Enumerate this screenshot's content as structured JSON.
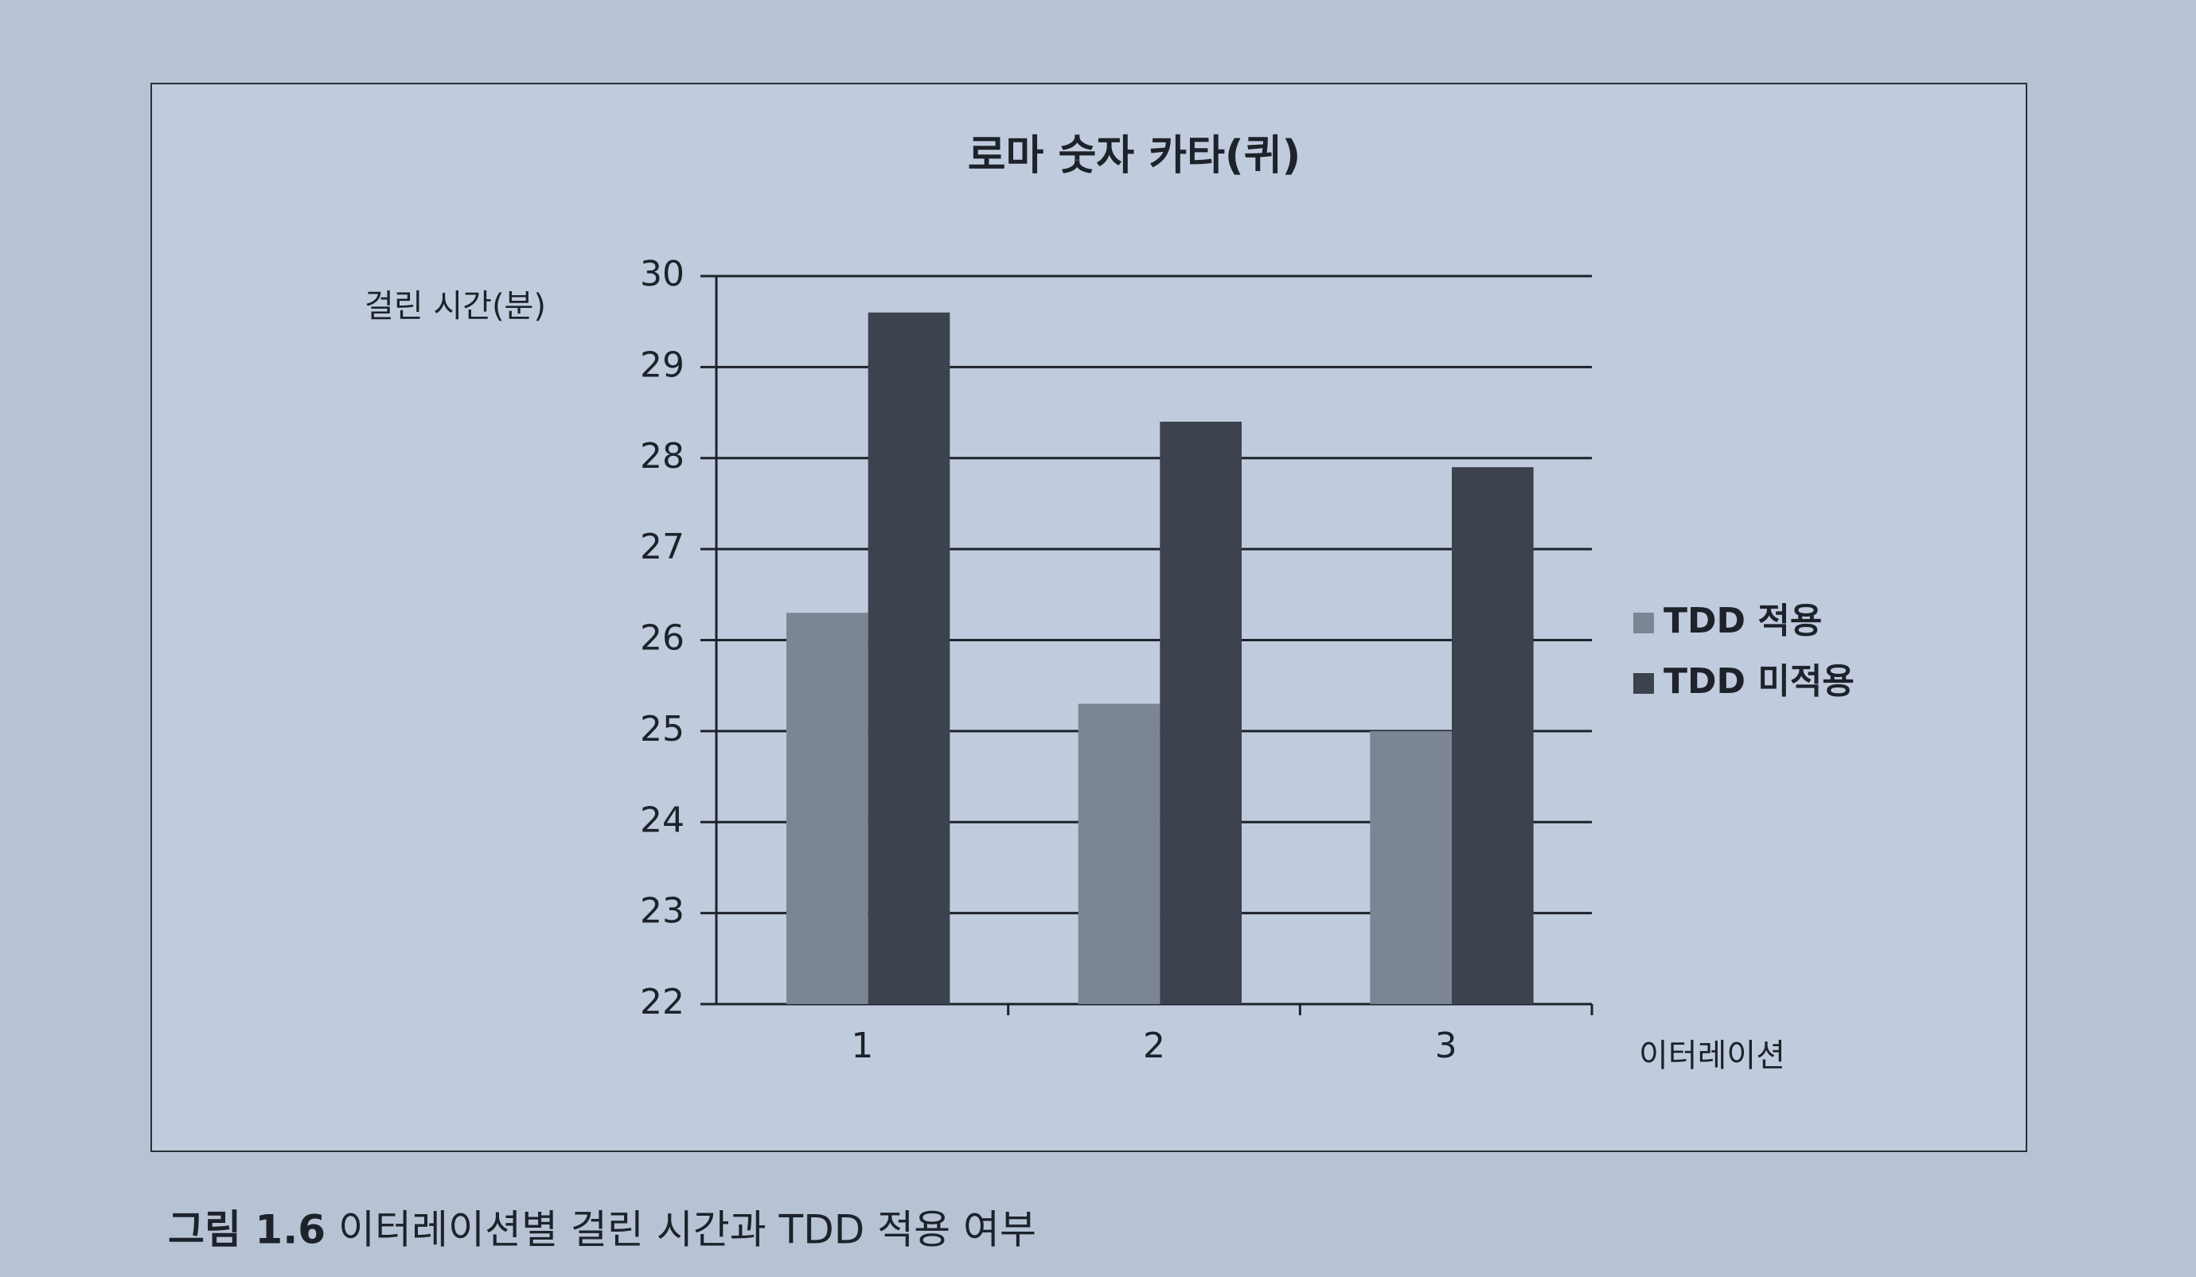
{
  "chart_data": {
    "type": "bar",
    "title": "로마 숫자 카타(퀴)",
    "y_label": "걸린 시간(분)",
    "x_label": "이터레이션",
    "categories": [
      "1",
      "2",
      "3"
    ],
    "series": [
      {
        "name": "TDD 적용",
        "color": "#7b8594",
        "values": [
          26.3,
          25.3,
          25.0
        ]
      },
      {
        "name": "TDD 미적용",
        "color": "#3c434e",
        "values": [
          29.6,
          28.4,
          27.9
        ]
      }
    ],
    "ylim": [
      22,
      30
    ],
    "yticks": [
      22,
      23,
      24,
      25,
      26,
      27,
      28,
      29,
      30
    ],
    "grid": true,
    "legend": "right"
  },
  "caption": {
    "label": "그림 1.6",
    "text": "이터레이션별 걸린 시간과 TDD 적용 여부"
  }
}
